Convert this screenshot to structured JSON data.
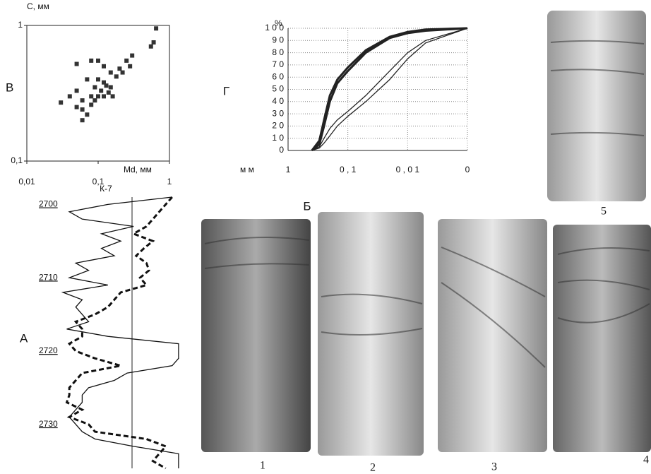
{
  "chart_data": [
    {
      "type": "scatter",
      "panel": "В",
      "y_label": "C, мм",
      "x_label": "Md, мм",
      "log_x": true,
      "log_y": true,
      "xlim": [
        0.01,
        1
      ],
      "ylim": [
        0.1,
        1
      ],
      "xticks": [
        {
          "value": 0.01,
          "label": "0,01"
        },
        {
          "value": 0.1,
          "label": "0,1"
        },
        1
      ],
      "yticks": [
        {
          "value": 0.1,
          "label": "0,1"
        },
        1
      ],
      "color": "#333",
      "x": [
        0.65,
        0.6,
        0.55,
        0.3,
        0.25,
        0.28,
        0.2,
        0.22,
        0.18,
        0.15,
        0.12,
        0.1,
        0.08,
        0.05,
        0.1,
        0.12,
        0.13,
        0.15,
        0.11,
        0.09,
        0.07,
        0.05,
        0.04,
        0.06,
        0.08,
        0.1,
        0.12,
        0.14,
        0.03,
        0.06,
        0.07,
        0.06,
        0.08,
        0.16,
        0.05,
        0.09
      ],
      "values": [
        0.95,
        0.75,
        0.7,
        0.6,
        0.55,
        0.5,
        0.48,
        0.45,
        0.42,
        0.45,
        0.5,
        0.55,
        0.55,
        0.52,
        0.4,
        0.38,
        0.36,
        0.35,
        0.33,
        0.35,
        0.4,
        0.33,
        0.3,
        0.28,
        0.3,
        0.3,
        0.3,
        0.32,
        0.27,
        0.24,
        0.22,
        0.2,
        0.26,
        0.3,
        0.25,
        0.28
      ]
    },
    {
      "type": "line",
      "panel": "Г",
      "y_unit": "%",
      "x_label": "м м",
      "log_x": true,
      "grid": true,
      "xlim": [
        1,
        0.001
      ],
      "ylim": [
        0,
        100
      ],
      "xticks": [
        1,
        {
          "value": 0.1,
          "label": "0 , 1"
        },
        {
          "value": 0.01,
          "label": "0 , 0 1"
        },
        {
          "value": 0.001,
          "label": "0"
        }
      ],
      "yticks": [
        0,
        {
          "value": 10,
          "label": "1 0"
        },
        {
          "value": 20,
          "label": "2 0"
        },
        {
          "value": 30,
          "label": "3 0"
        },
        {
          "value": 40,
          "label": "4 0"
        },
        {
          "value": 50,
          "label": "5 0"
        },
        {
          "value": 60,
          "label": "6 0"
        },
        {
          "value": 70,
          "label": "7 0"
        },
        {
          "value": 80,
          "label": "8 0"
        },
        {
          "value": 90,
          "label": "9 0"
        },
        {
          "value": 100,
          "label": "1 0 0"
        }
      ],
      "x": [
        0.4,
        0.3,
        0.25,
        0.2,
        0.15,
        0.1,
        0.05,
        0.02,
        0.01,
        0.005,
        0.001
      ],
      "series": [
        {
          "color": "#222",
          "width": 3,
          "values": [
            0,
            5,
            20,
            40,
            55,
            65,
            80,
            92,
            96,
            98,
            100
          ]
        },
        {
          "color": "#222",
          "width": 3,
          "values": [
            0,
            8,
            25,
            45,
            58,
            68,
            82,
            93,
            97,
            99,
            100
          ]
        },
        {
          "color": "#222",
          "width": 1.3,
          "values": [
            0,
            3,
            10,
            18,
            25,
            32,
            45,
            65,
            80,
            90,
            100
          ]
        },
        {
          "color": "#222",
          "width": 1.3,
          "values": [
            0,
            2,
            6,
            12,
            20,
            28,
            40,
            58,
            75,
            88,
            100
          ]
        }
      ]
    },
    {
      "type": "depth-log",
      "panel": "А",
      "title": "К-7",
      "ylim": [
        2699,
        2736
      ],
      "yticks": [
        2700,
        2710,
        2720,
        2730
      ],
      "xlim": [
        0,
        100
      ],
      "depth": [
        2699,
        2700,
        2701,
        2702,
        2703,
        2704,
        2705,
        2706,
        2707,
        2708,
        2709,
        2710,
        2711,
        2712,
        2713,
        2714,
        2715,
        2716,
        2717,
        2718,
        2719,
        2720,
        2721,
        2722,
        2723,
        2724,
        2725,
        2726,
        2727,
        2728,
        2729,
        2730,
        2731,
        2732,
        2733,
        2734,
        2735,
        2736
      ],
      "series": [
        {
          "color": "#111",
          "style": "solid",
          "values": [
            90,
            40,
            10,
            20,
            60,
            35,
            50,
            35,
            45,
            15,
            25,
            10,
            40,
            5,
            20,
            15,
            20,
            25,
            8,
            40,
            95,
            95,
            95,
            90,
            55,
            45,
            25,
            20,
            20,
            15,
            10,
            15,
            20,
            30,
            60,
            95,
            95,
            95
          ]
        },
        {
          "color": "#111",
          "style": "dashed",
          "values": [
            90,
            85,
            80,
            75,
            70,
            60,
            75,
            68,
            62,
            70,
            72,
            65,
            70,
            50,
            45,
            40,
            30,
            15,
            20,
            20,
            10,
            15,
            30,
            50,
            20,
            15,
            10,
            10,
            8,
            20,
            10,
            25,
            30,
            70,
            85,
            80,
            75,
            85
          ]
        }
      ]
    }
  ],
  "photos": {
    "panel": "Б",
    "labels": [
      "1",
      "2",
      "3",
      "4",
      "5"
    ]
  }
}
